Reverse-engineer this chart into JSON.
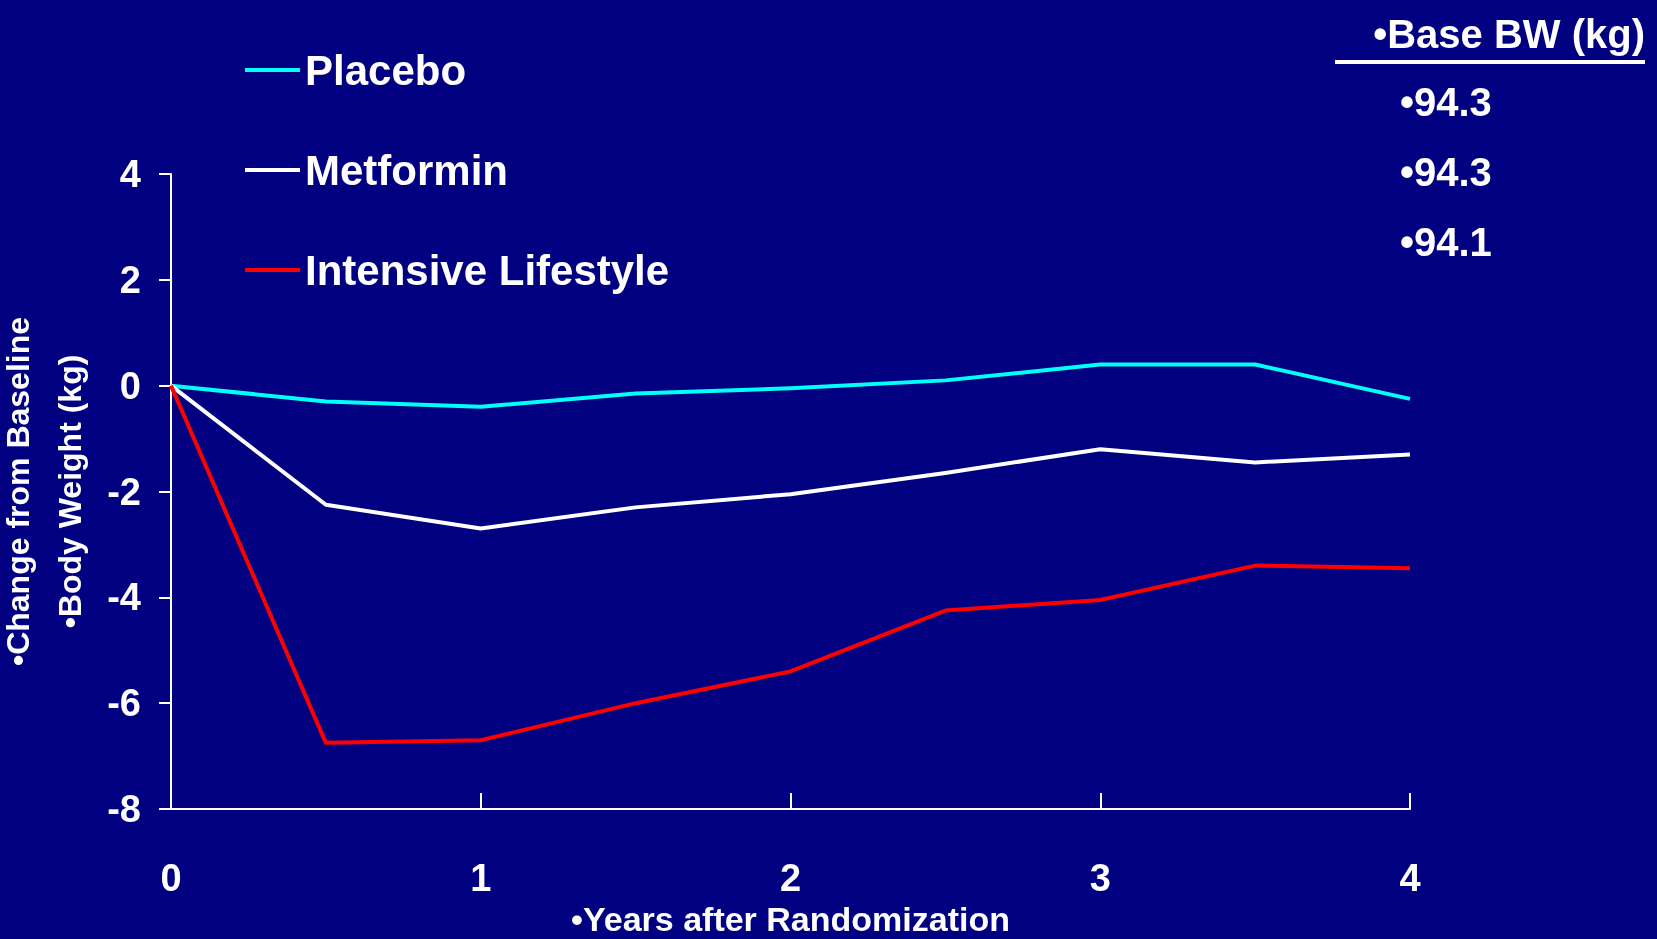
{
  "chart_data": {
    "type": "line",
    "xlabel": "•Years after Randomization",
    "ylabel": "•Change from Baseline\n•Body Weight (kg)",
    "x": [
      0,
      0.5,
      1,
      1.5,
      2,
      2.5,
      3,
      3.5,
      4
    ],
    "series": [
      {
        "name": "Placebo",
        "color": "#00ffff",
        "values": [
          0,
          -0.3,
          -0.4,
          -0.15,
          -0.05,
          0.1,
          0.4,
          0.4,
          -0.25
        ]
      },
      {
        "name": "Metformin",
        "color": "#ffffff",
        "values": [
          0,
          -2.25,
          -2.7,
          -2.3,
          -2.05,
          -1.65,
          -1.2,
          -1.45,
          -1.3
        ]
      },
      {
        "name": "Intensive Lifestyle",
        "color": "#ff0000",
        "values": [
          0,
          -6.75,
          -6.7,
          -6.0,
          -5.4,
          -4.25,
          -4.05,
          -3.4,
          -3.45
        ]
      }
    ],
    "xlim": [
      0,
      4
    ],
    "xticks": [
      0,
      1,
      2,
      3,
      4
    ],
    "ylim": [
      -8,
      4
    ],
    "yticks": [
      -8,
      -6,
      -4,
      -2,
      0,
      2,
      4
    ],
    "grid": false,
    "legend": "top left",
    "marker": "none",
    "line_style": "solid",
    "annotations": [
      "•Base BW (kg)",
      "•94.3",
      "•94.3",
      "•94.1"
    ]
  }
}
